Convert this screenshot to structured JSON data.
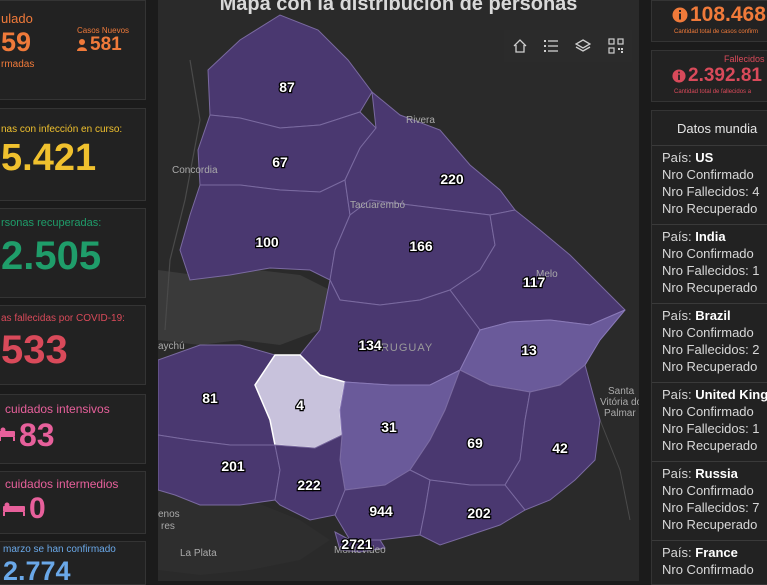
{
  "left": {
    "acumulado": {
      "label": "ulado",
      "value": "59",
      "sub": "rmadas"
    },
    "casos_nuevos": {
      "label": "Casos Nuevos",
      "value": "581"
    },
    "en_curso": {
      "label": "nas con infección en curso:",
      "value": "5.421"
    },
    "recuperadas": {
      "label": "rsonas recuperadas:",
      "value": "2.505"
    },
    "fallecidas": {
      "label": "as fallecidas por COVID-19:",
      "value": "533"
    },
    "intensivos": {
      "label": "cuidados intensivos",
      "value": "83",
      "icon": "bed-icon"
    },
    "intermedios": {
      "label": "cuidados intermedios",
      "value": "0",
      "icon": "bed-icon"
    },
    "marzo": {
      "label": "marzo se han confirmado",
      "value": "2.774"
    }
  },
  "map": {
    "title": "Mapa con la distribución de personas",
    "tools": [
      "home-icon",
      "list-icon",
      "layers-icon",
      "qr-grid-icon"
    ],
    "departments": [
      {
        "name": "artigas",
        "value": "87"
      },
      {
        "name": "salto",
        "value": "67"
      },
      {
        "name": "paysandu",
        "value": "100"
      },
      {
        "name": "rivera",
        "value": "220"
      },
      {
        "name": "tacuarembo",
        "value": "166"
      },
      {
        "name": "cerro-largo",
        "value": "117"
      },
      {
        "name": "durazno",
        "value": "134"
      },
      {
        "name": "treinta-y-tres",
        "value": "13"
      },
      {
        "name": "soriano",
        "value": "81"
      },
      {
        "name": "flores",
        "value": "4"
      },
      {
        "name": "florida",
        "value": "31"
      },
      {
        "name": "lavalleja",
        "value": "69"
      },
      {
        "name": "rocha",
        "value": "42"
      },
      {
        "name": "colonia",
        "value": "201"
      },
      {
        "name": "san-jose",
        "value": "222"
      },
      {
        "name": "canelones",
        "value": "944"
      },
      {
        "name": "maldonado",
        "value": "202"
      },
      {
        "name": "montevideo",
        "value": "2721"
      }
    ],
    "places": {
      "rivera": "Rivera",
      "concordia": "Concordia",
      "tacuarembo": "Tacuarembó",
      "melo": "Melo",
      "uruguay": "URUGUAY",
      "santa_vitoria": "Santa",
      "santa_vitoria2": "Vitória do",
      "santa_vitoria3": "Palmar",
      "gualeguaychu": "aychú",
      "buenos_aires": "enos",
      "buenos_aires2": "res",
      "la_plata": "La Plata",
      "montevideo": "Montevideo"
    }
  },
  "right": {
    "confirmados": {
      "value": "108.468",
      "sub": "Cantidad total de casos confirm"
    },
    "fallecidos": {
      "label": "Fallecidos",
      "value": "2.392.81",
      "sub": "Cantidad total de fallecidos a"
    },
    "mundial": {
      "title": "Datos mundia",
      "countries": [
        {
          "pais": "US",
          "confirmados": "Nro Confirmado",
          "fallecidos": "Nro Fallecidos: 4",
          "recuperados": "Nro Recuperado"
        },
        {
          "pais": "India",
          "confirmados": "Nro Confirmado",
          "fallecidos": "Nro Fallecidos: 1",
          "recuperados": "Nro Recuperado"
        },
        {
          "pais": "Brazil",
          "confirmados": "Nro Confirmado",
          "fallecidos": "Nro Fallecidos: 2",
          "recuperados": "Nro Recuperado"
        },
        {
          "pais": "United King",
          "confirmados": "Nro Confirmado",
          "fallecidos": "Nro Fallecidos: 1",
          "recuperados": "Nro Recuperado"
        },
        {
          "pais": "Russia",
          "confirmados": "Nro Confirmado",
          "fallecidos": "Nro Fallecidos: 7",
          "recuperados": "Nro Recuperado"
        },
        {
          "pais": "France",
          "confirmados": "Nro Confirmado"
        }
      ],
      "pais_label": "País:"
    }
  }
}
